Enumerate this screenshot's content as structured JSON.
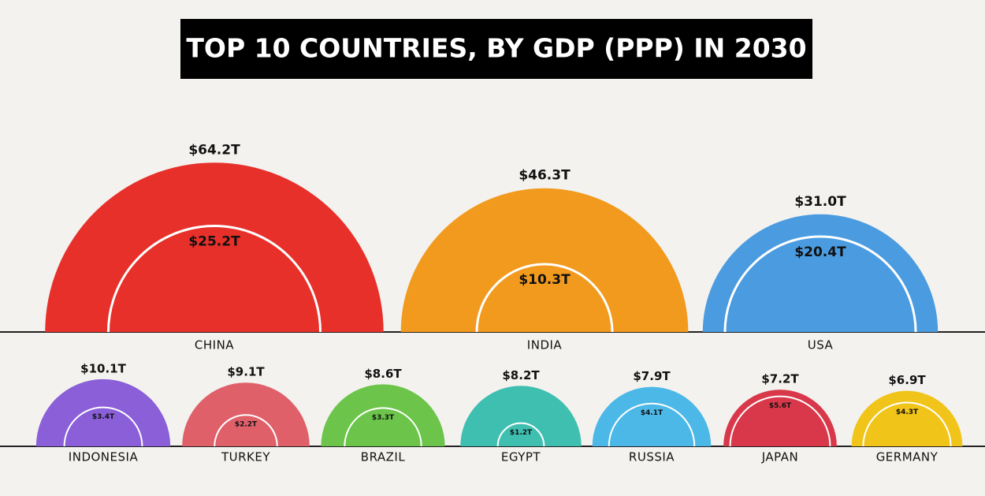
{
  "chart_data": {
    "type": "semicircle",
    "title": "TOP 10 COUNTRIES, BY GDP (PPP) IN 2030",
    "categories": [
      "CHINA",
      "INDIA",
      "USA",
      "INDONESIA",
      "TURKEY",
      "BRAZIL",
      "EGYPT",
      "RUSSIA",
      "JAPAN",
      "GERMANY"
    ],
    "colors": [
      "#e8302a",
      "#f29a1e",
      "#4a9be0",
      "#8a5fd8",
      "#e0606a",
      "#6cc54a",
      "#3fbfb0",
      "#4cb8e8",
      "#d8384a",
      "#f0c419"
    ],
    "series": [
      {
        "values": [
          64.2,
          46.3,
          31.0,
          10.1,
          9.1,
          8.6,
          8.2,
          7.9,
          7.2,
          6.9
        ],
        "value_labels": [
          "$64.2T",
          "$46.3T",
          "$31.0T",
          "$10.1T",
          "$9.1T",
          "$8.6T",
          "$8.2T",
          "$7.9T",
          "$7.2T",
          "$6.9T"
        ]
      },
      {
        "values": [
          25.2,
          10.3,
          20.4,
          3.4,
          2.2,
          3.3,
          1.2,
          4.1,
          5.6,
          4.3
        ],
        "value_labels": [
          "$25.2T",
          "$10.3T",
          "$20.4T",
          "$3.4T",
          "$2.2T",
          "$3.3T",
          "$1.2T",
          "$4.1T",
          "$5.6T",
          "$4.3T"
        ]
      }
    ]
  }
}
